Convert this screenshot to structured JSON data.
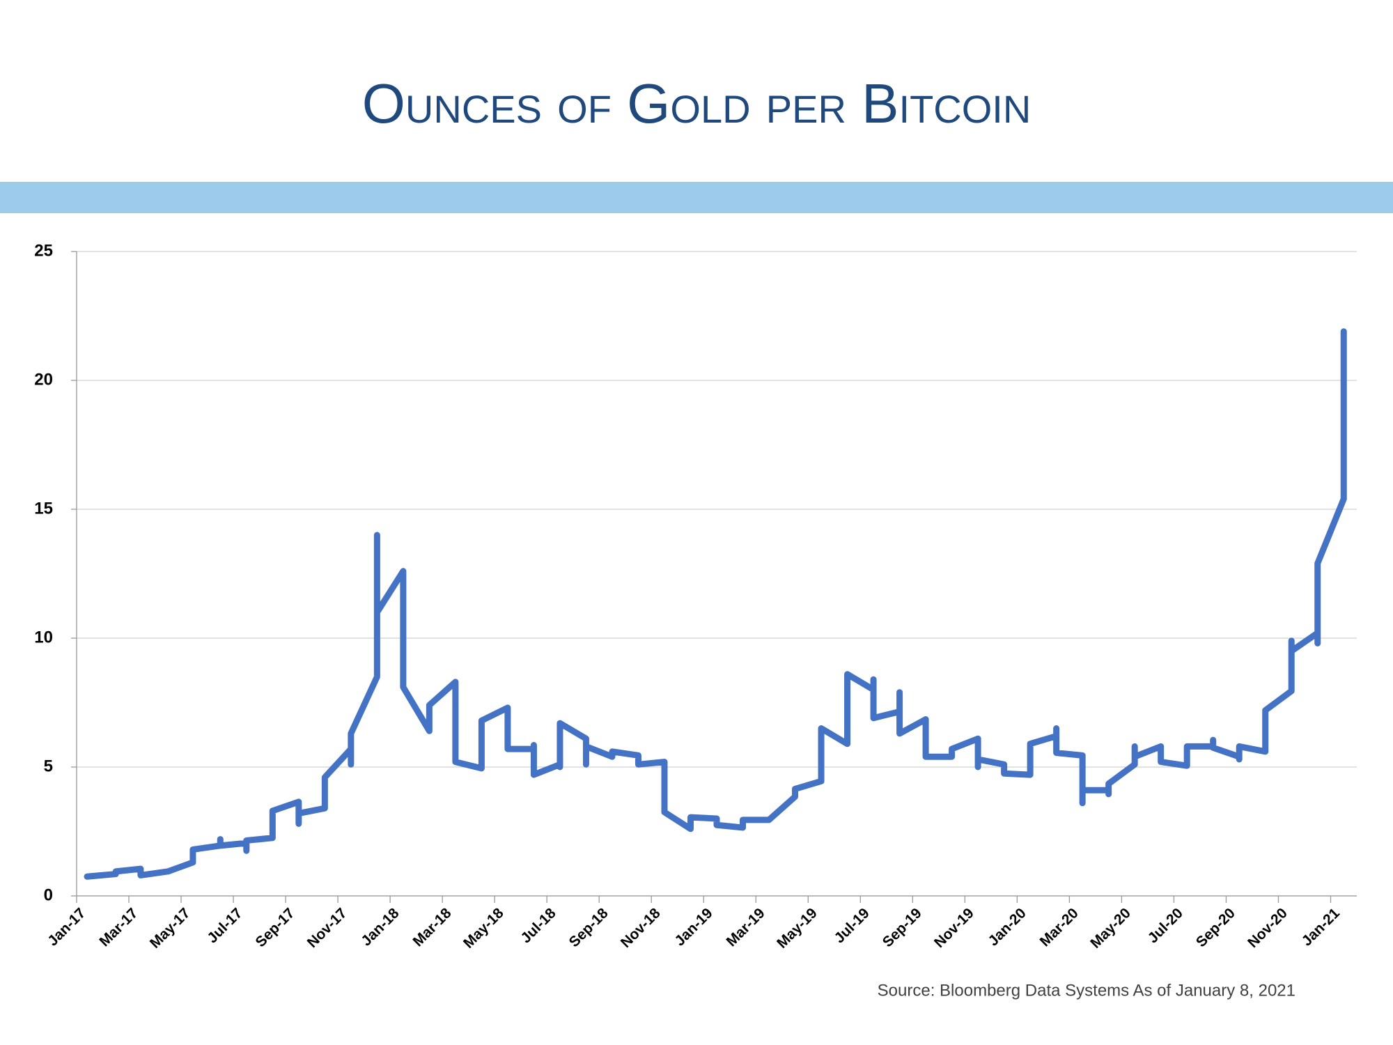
{
  "chart_data": {
    "type": "line",
    "title": "Ounces of Gold per Bitcoin",
    "source": "Source: Bloomberg Data Systems As of January 8, 2021",
    "xlim": [
      0,
      49
    ],
    "xticks": [
      {
        "value": 0,
        "label": "Jan-17"
      },
      {
        "value": 2,
        "label": "Mar-17"
      },
      {
        "value": 4,
        "label": "May-17"
      },
      {
        "value": 6,
        "label": "Jul-17"
      },
      {
        "value": 8,
        "label": "Sep-17"
      },
      {
        "value": 10,
        "label": "Nov-17"
      },
      {
        "value": 12,
        "label": "Jan-18"
      },
      {
        "value": 14,
        "label": "Mar-18"
      },
      {
        "value": 16,
        "label": "May-18"
      },
      {
        "value": 18,
        "label": "Jul-18"
      },
      {
        "value": 20,
        "label": "Sep-18"
      },
      {
        "value": 22,
        "label": "Nov-18"
      },
      {
        "value": 24,
        "label": "Jan-19"
      },
      {
        "value": 26,
        "label": "Mar-19"
      },
      {
        "value": 28,
        "label": "May-19"
      },
      {
        "value": 30,
        "label": "Jul-19"
      },
      {
        "value": 32,
        "label": "Sep-19"
      },
      {
        "value": 34,
        "label": "Nov-19"
      },
      {
        "value": 36,
        "label": "Jan-20"
      },
      {
        "value": 38,
        "label": "Mar-20"
      },
      {
        "value": 40,
        "label": "May-20"
      },
      {
        "value": 42,
        "label": "Jul-20"
      },
      {
        "value": 44,
        "label": "Sep-20"
      },
      {
        "value": 46,
        "label": "Nov-20"
      },
      {
        "value": 48,
        "label": "Jan-21"
      }
    ],
    "ylim": [
      0,
      25
    ],
    "yticks": [
      0,
      5,
      10,
      15,
      20,
      25
    ],
    "grid": true,
    "series": [
      {
        "color": "#4472c4",
        "x": [
          0.4,
          1.5,
          1.5,
          2.45,
          2.45,
          3.5,
          4.45,
          4.45,
          5.5,
          5.5,
          5.5,
          6.5,
          6.5,
          6.5,
          7.5,
          7.5,
          8.5,
          8.5,
          8.5,
          9.5,
          9.5,
          10.5,
          10.5,
          10.5,
          11.5,
          11.5,
          11.5,
          12.5,
          12.5,
          13.5,
          13.5,
          14.5,
          14.5,
          15.5,
          15.5,
          16.5,
          16.5,
          17.5,
          17.5,
          17.5,
          18.5,
          18.5,
          18.5,
          19.5,
          19.5,
          19.5,
          20.5,
          20.5,
          21.5,
          21.5,
          22.5,
          22.5,
          23.5,
          23.5,
          24.5,
          24.5,
          25.5,
          25.5,
          26.5,
          27.5,
          27.5,
          28.5,
          28.5,
          29.5,
          29.5,
          30.5,
          30.5,
          30.5,
          31.5,
          31.5,
          31.5,
          32.5,
          32.5,
          33.5,
          33.5,
          34.5,
          34.5,
          34.5,
          35.5,
          35.5,
          36.5,
          36.5,
          37.5,
          37.5,
          37.5,
          38.5,
          38.5,
          38.5,
          39.5,
          39.5,
          39.5,
          40.5,
          40.5,
          40.5,
          41.5,
          41.5,
          42.5,
          42.5,
          43.5,
          43.5,
          43.5,
          44.5,
          44.5,
          44.5,
          45.5,
          45.5,
          46.5,
          46.5,
          46.5,
          47.5,
          47.5,
          47.5,
          48.5,
          48.5
        ],
        "values": [
          0.75,
          0.85,
          0.95,
          1.05,
          0.8,
          0.95,
          1.3,
          1.8,
          1.95,
          2.2,
          1.95,
          2.05,
          1.75,
          2.15,
          2.25,
          3.3,
          3.65,
          2.8,
          3.2,
          3.4,
          4.6,
          5.7,
          5.1,
          6.3,
          8.5,
          14,
          11,
          12.6,
          8.1,
          6.4,
          7.4,
          8.3,
          5.2,
          4.95,
          6.8,
          7.3,
          5.7,
          5.7,
          5.85,
          4.7,
          5.1,
          5.0,
          6.7,
          6.1,
          5.1,
          5.8,
          5.4,
          5.6,
          5.45,
          5.1,
          5.2,
          3.25,
          2.6,
          3.05,
          3.0,
          2.75,
          2.65,
          2.95,
          2.95,
          3.85,
          4.15,
          4.45,
          6.5,
          5.9,
          8.6,
          8.0,
          8.4,
          6.9,
          7.15,
          7.9,
          6.3,
          6.85,
          5.4,
          5.4,
          5.7,
          6.1,
          5.0,
          5.3,
          5.1,
          4.75,
          4.7,
          5.9,
          6.2,
          6.5,
          5.55,
          5.45,
          3.6,
          4.1,
          4.1,
          3.95,
          4.35,
          5.1,
          5.8,
          5.4,
          5.8,
          5.2,
          5.05,
          5.8,
          5.8,
          6.05,
          5.75,
          5.4,
          5.3,
          5.8,
          5.6,
          7.2,
          7.95,
          9.9,
          9.5,
          10.2,
          9.8,
          12.9,
          15.4,
          21.9
        ]
      }
    ]
  }
}
